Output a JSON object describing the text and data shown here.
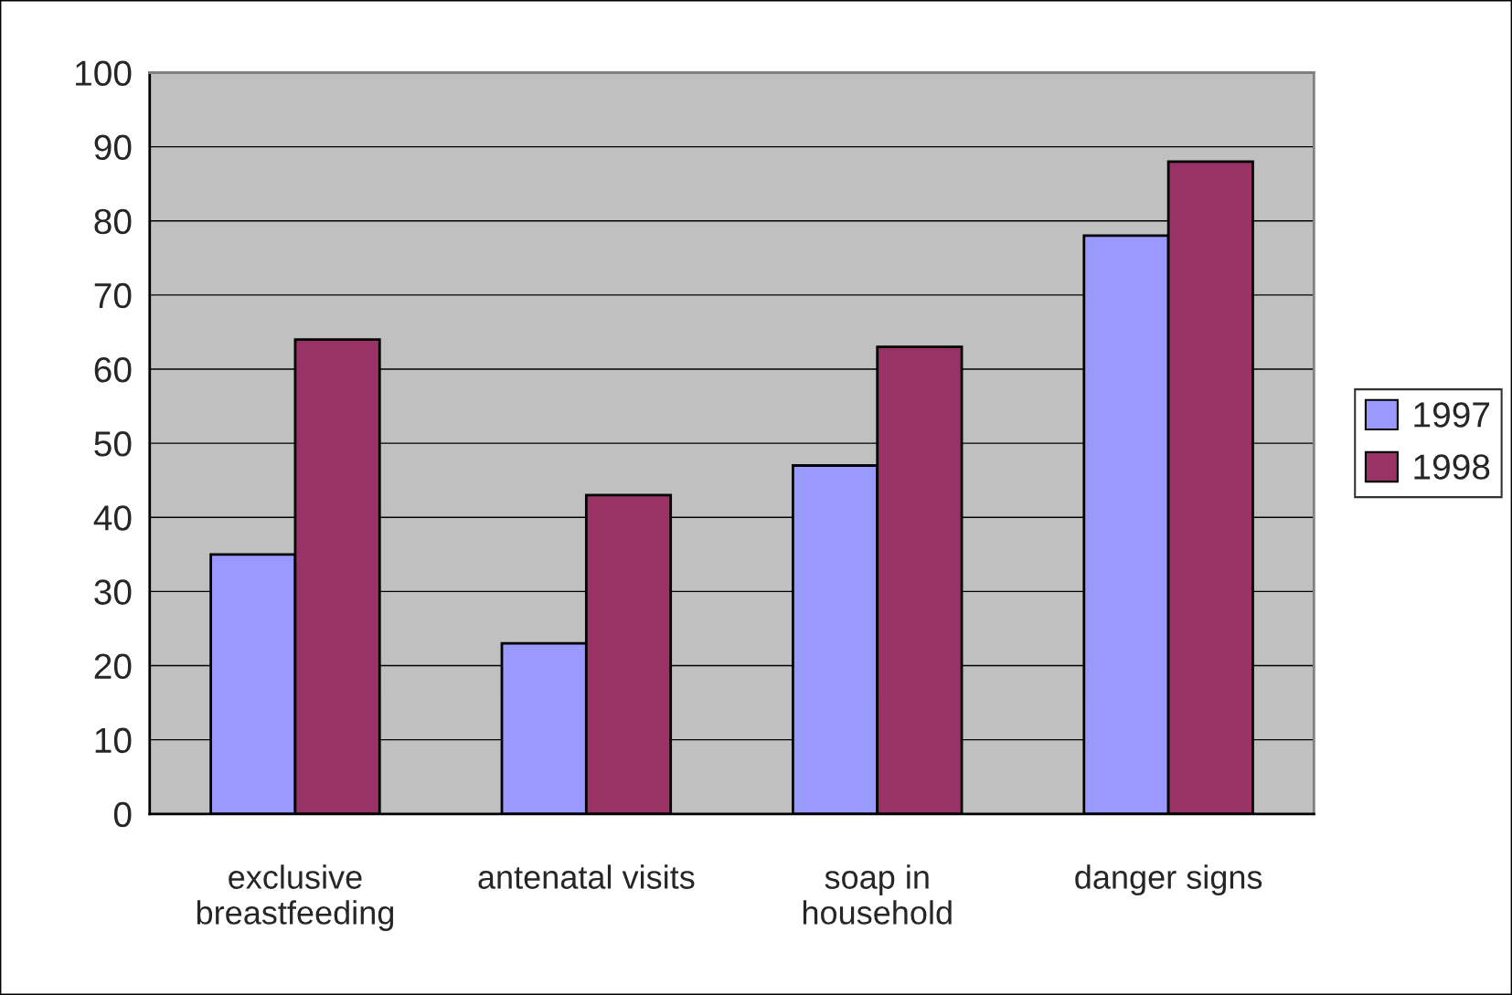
{
  "chart_data": {
    "type": "bar",
    "categories": [
      "exclusive\nbreastfeeding",
      "antenatal visits",
      "soap in\nhousehold",
      "danger signs"
    ],
    "series": [
      {
        "name": "1997",
        "color": "#9999ff",
        "values": [
          35,
          23,
          47,
          78
        ]
      },
      {
        "name": "1998",
        "color": "#993366",
        "values": [
          64,
          43,
          63,
          88
        ]
      }
    ],
    "ylim": [
      0,
      100
    ],
    "yticks": [
      0,
      10,
      20,
      30,
      40,
      50,
      60,
      70,
      80,
      90,
      100
    ],
    "grid": "y",
    "legend": "right"
  }
}
